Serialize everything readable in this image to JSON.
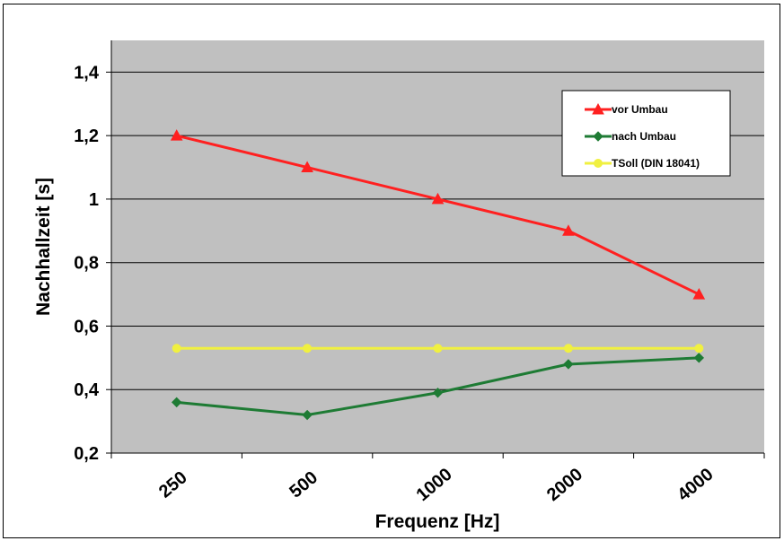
{
  "chart_data": {
    "type": "line",
    "title": "",
    "xlabel": "Frequenz  [Hz]",
    "ylabel": "Nachhallzeit [s]",
    "categories": [
      "250",
      "500",
      "1000",
      "2000",
      "4000"
    ],
    "y_ticks": [
      "0,2",
      "0,4",
      "0,6",
      "0,8",
      "1",
      "1,2",
      "1,4"
    ],
    "ylim": [
      0.2,
      1.5
    ],
    "grid": true,
    "legend_position": "top-right",
    "plot_background": "#C0C0C0",
    "series": [
      {
        "name": "vor Umbau",
        "color": "#FF2020",
        "marker": "triangle",
        "values": [
          1.2,
          1.1,
          1.0,
          0.9,
          0.7
        ]
      },
      {
        "name": "nach Umbau",
        "color": "#1E7B34",
        "marker": "diamond",
        "values": [
          0.36,
          0.32,
          0.39,
          0.48,
          0.5
        ]
      },
      {
        "name": "TSoll  (DIN 18041)",
        "color": "#F0F040",
        "marker": "circle",
        "values": [
          0.53,
          0.53,
          0.53,
          0.53,
          0.53
        ]
      }
    ]
  }
}
